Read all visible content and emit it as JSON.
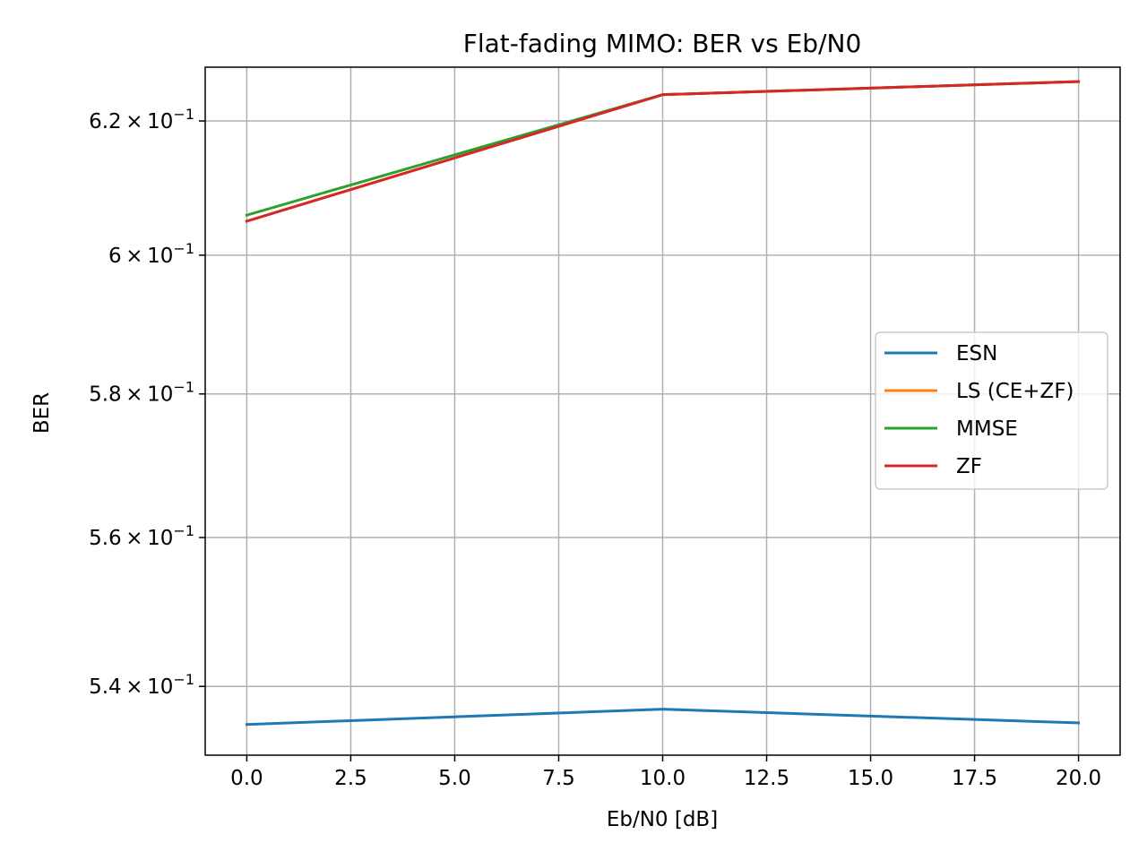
{
  "chart_data": {
    "type": "line",
    "title": "Flat-fading MIMO: BER vs Eb/N0",
    "xlabel": "Eb/N0 [dB]",
    "ylabel": "BER",
    "x": [
      0,
      10,
      20
    ],
    "series": [
      {
        "name": "ESN",
        "color": "#1f77b4",
        "values": [
          0.535,
          0.537,
          0.5352
        ]
      },
      {
        "name": "LS (CE+ZF)",
        "color": "#ff7f0e",
        "values": [
          0.605,
          0.624,
          0.626
        ]
      },
      {
        "name": "MMSE",
        "color": "#2ca02c",
        "values": [
          0.6059,
          0.624,
          0.626
        ]
      },
      {
        "name": "ZF",
        "color": "#d62728",
        "values": [
          0.605,
          0.624,
          0.626
        ]
      }
    ],
    "xlim": [
      -1,
      21
    ],
    "ylim": [
      0.531,
      0.6282
    ],
    "yscale": "log",
    "x_ticks": [
      0,
      2.5,
      5,
      7.5,
      10,
      12.5,
      15,
      17.5,
      20
    ],
    "x_tick_labels": [
      "0.0",
      "2.5",
      "5.0",
      "7.5",
      "10.0",
      "12.5",
      "15.0",
      "17.5",
      "20.0"
    ],
    "y_ticks": [
      0.54,
      0.56,
      0.58,
      0.6,
      0.62
    ],
    "y_tick_labels": [
      {
        "mantissa": "5.4",
        "times": "×",
        "base": "10",
        "exp": "−1"
      },
      {
        "mantissa": "5.6",
        "times": "×",
        "base": "10",
        "exp": "−1"
      },
      {
        "mantissa": "5.8",
        "times": "×",
        "base": "10",
        "exp": "−1"
      },
      {
        "mantissa": "6",
        "times": "×",
        "base": "10",
        "exp": "−1"
      },
      {
        "mantissa": "6.2",
        "times": "×",
        "base": "10",
        "exp": "−1"
      }
    ],
    "grid": true,
    "legend_position": "center-right"
  }
}
